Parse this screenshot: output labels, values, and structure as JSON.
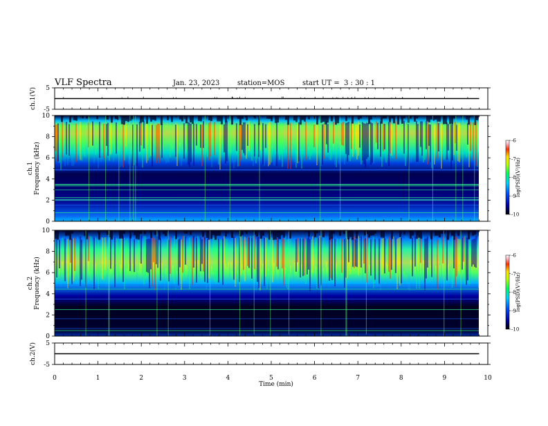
{
  "header": {
    "title": "VLF Spectra",
    "date": "Jan. 23, 2023",
    "station": "station=MOS",
    "start_ut": "start UT =  3 : 30 : 1"
  },
  "chart_data": [
    {
      "name": "ch1-waveform",
      "type": "line",
      "ylabel": "ch.1(V)",
      "ylim": [
        -5,
        5
      ],
      "y_ticks": [
        "5",
        "-5"
      ],
      "x": [
        0,
        9.8
      ],
      "y": [
        0,
        0
      ]
    },
    {
      "name": "ch1-spectrogram",
      "type": "heatmap",
      "ylabel": "ch.1\nFrequency (kHz)",
      "ylim": [
        0,
        10
      ],
      "y_ticks": [
        "10",
        "8",
        "6",
        "4",
        "2",
        "0"
      ],
      "xlim": [
        0,
        10
      ],
      "data_extent_x_min": [
        0,
        9.8
      ],
      "description_bands_khz": {
        "strong_emission": [
          5.5,
          9.5
        ],
        "weak_background": [
          0,
          5
        ]
      },
      "colorbar": {
        "label": "log(PSD)(V²/Hz)",
        "range": [
          -10,
          -6
        ],
        "ticks": [
          "-6",
          "-7",
          "-8",
          "-9",
          "-10"
        ]
      }
    },
    {
      "name": "ch2-spectrogram",
      "type": "heatmap",
      "ylabel": "ch.2\nFrequency (kHz)",
      "ylim": [
        0,
        10
      ],
      "y_ticks": [
        "10",
        "8",
        "6",
        "4",
        "2",
        "0"
      ],
      "xlim": [
        0,
        10
      ],
      "data_extent_x_min": [
        0,
        9.8
      ],
      "description_bands_khz": {
        "strong_emission": [
          5,
          9.5
        ],
        "weak_background": [
          0,
          4.5
        ]
      },
      "colorbar": {
        "label": "log(PSD)(V²/Hz)",
        "range": [
          -10,
          -6
        ],
        "ticks": [
          "-6",
          "-7",
          "-8",
          "-9",
          "-10"
        ]
      }
    },
    {
      "name": "ch2-waveform",
      "type": "line",
      "ylabel": "ch.2(V)",
      "ylim": [
        -5,
        5
      ],
      "y_ticks": [
        "5",
        "-5"
      ],
      "x": [
        0,
        9.8
      ],
      "y": [
        0,
        0
      ]
    }
  ],
  "x_axis": {
    "label": "Time (min)",
    "range": [
      0,
      10
    ],
    "ticks": [
      "0",
      "1",
      "2",
      "3",
      "4",
      "5",
      "6",
      "7",
      "8",
      "9",
      "10"
    ]
  }
}
